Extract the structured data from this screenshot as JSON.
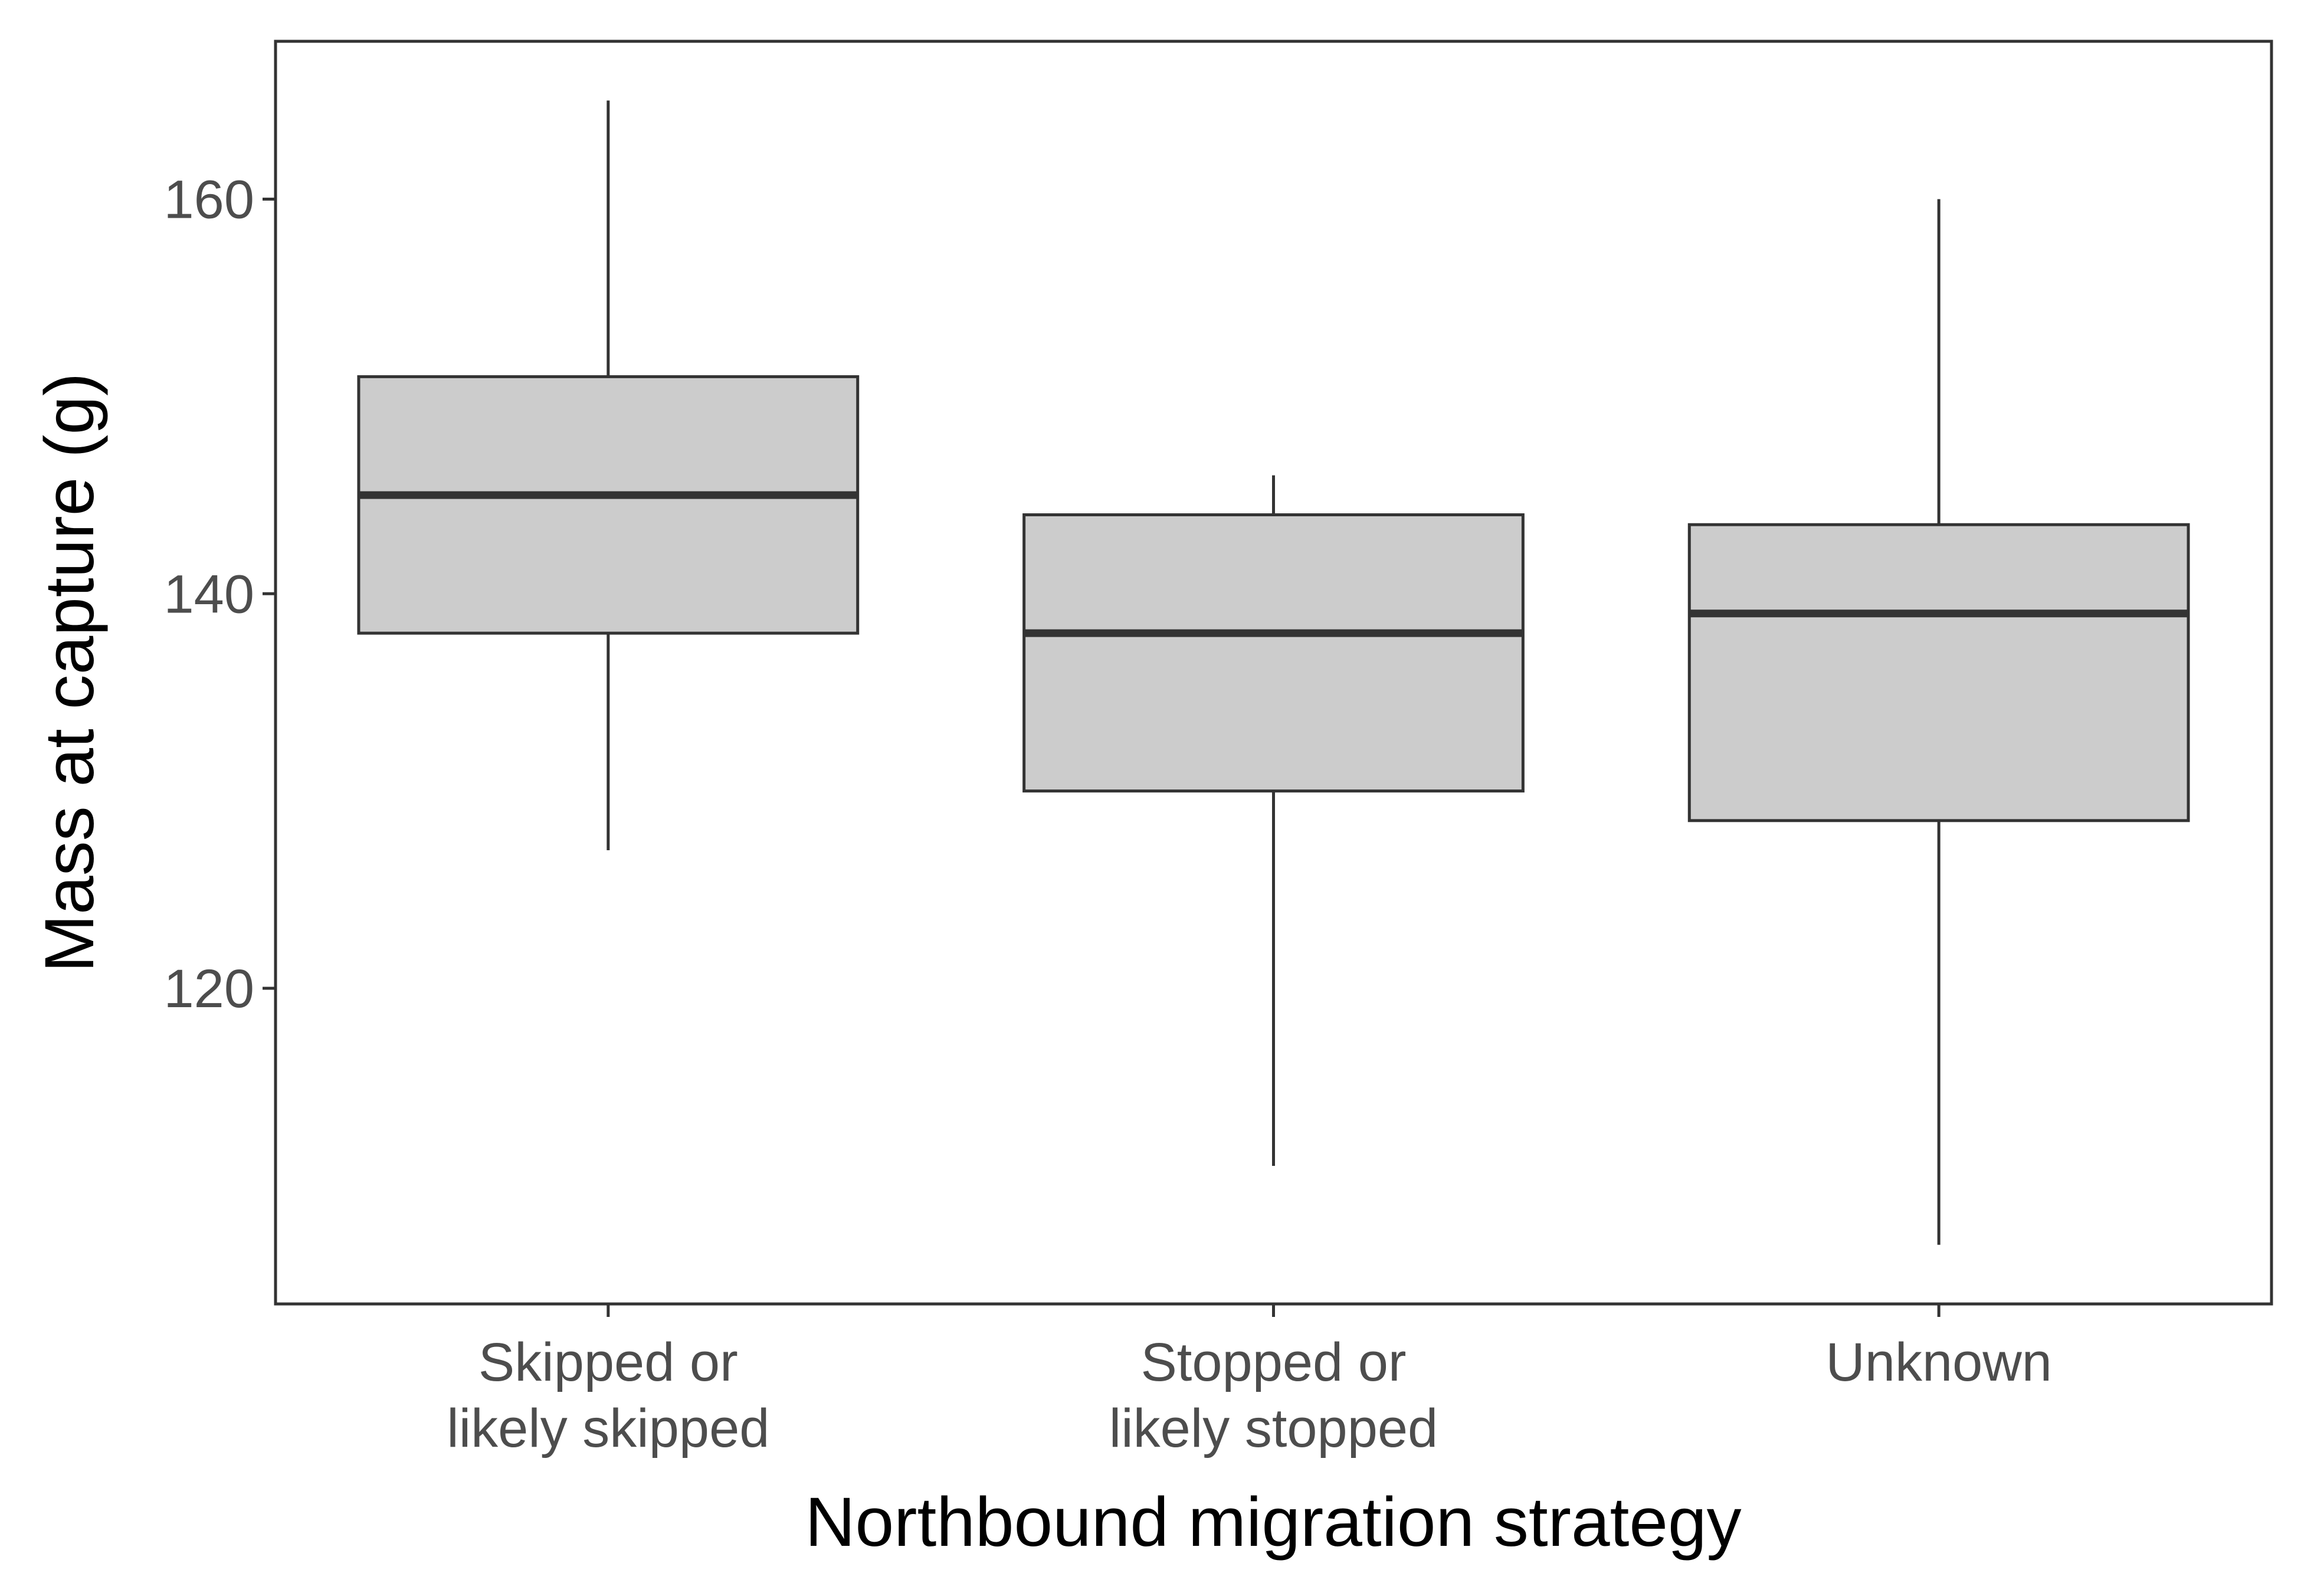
{
  "chart_data": {
    "type": "boxplot",
    "title": "",
    "xlabel": "Northbound migration strategy",
    "ylabel": "Mass at capture (g)",
    "categories": [
      [
        "Skipped or",
        "likely skipped"
      ],
      [
        "Stopped or",
        "likely stopped"
      ],
      [
        "Unknown"
      ]
    ],
    "boxes": [
      {
        "whisker_low": 127,
        "q1": 138,
        "median": 145,
        "q3": 151,
        "whisker_high": 165
      },
      {
        "whisker_low": 111,
        "q1": 130,
        "median": 138,
        "q3": 144,
        "whisker_high": 146
      },
      {
        "whisker_low": 107,
        "q1": 128.5,
        "median": 139,
        "q3": 143.5,
        "whisker_high": 160
      }
    ],
    "yticks": [
      120,
      140,
      160
    ],
    "ylim": [
      104,
      168
    ],
    "grid": false,
    "colors": {
      "box_fill": "#cccccc",
      "box_stroke": "#333333",
      "panel_border": "#333333"
    }
  }
}
